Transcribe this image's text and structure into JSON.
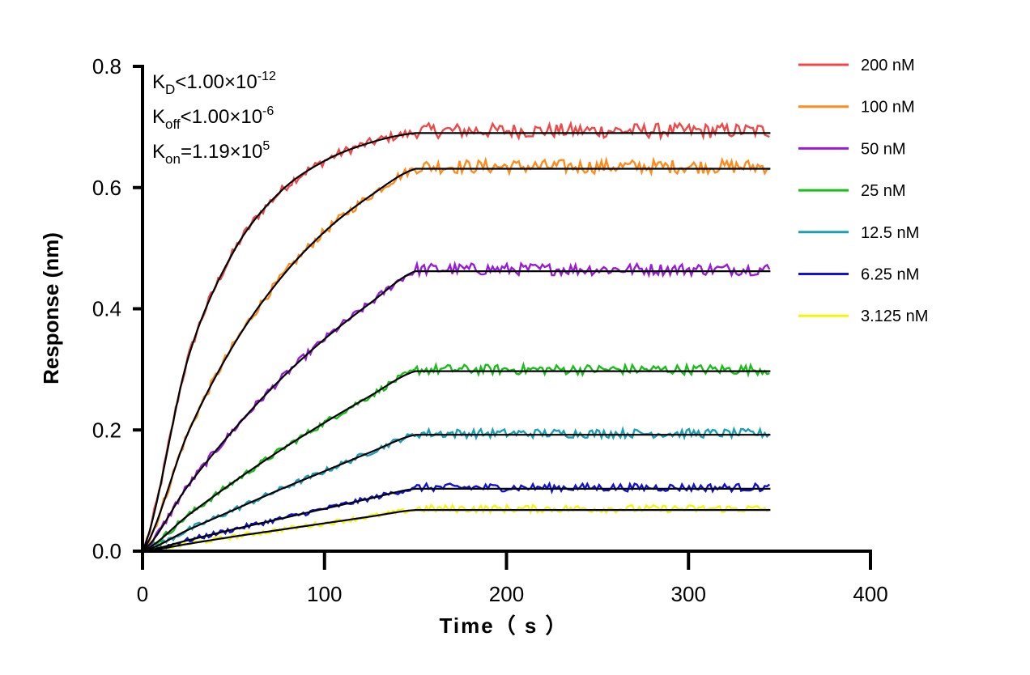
{
  "chart_data": {
    "type": "line",
    "xlabel": "Time（ s ）",
    "ylabel": "Response (nm)",
    "xlim": [
      0,
      400
    ],
    "ylim": [
      0,
      0.8
    ],
    "xticks": [
      "0",
      "100",
      "200",
      "300",
      "400"
    ],
    "yticks": [
      "0.0",
      "0.2",
      "0.4",
      "0.6",
      "0.8"
    ],
    "grid": false,
    "legend_position": "right",
    "fit_color": "#000000",
    "annotations": [
      {
        "main": "K",
        "sub": "D",
        "rel": "<1.00×10",
        "exp": "-12"
      },
      {
        "main": "K",
        "sub": "off",
        "rel": "<1.00×10",
        "exp": "-6"
      },
      {
        "main": "K",
        "sub": "on",
        "rel": "=1.19×10",
        "exp": "5"
      }
    ],
    "x": [
      0,
      25,
      50,
      75,
      100,
      125,
      150,
      200,
      250,
      300,
      345
    ],
    "series": [
      {
        "name": "200 nM",
        "color": "#f04848",
        "values": [
          0,
          0.318,
          0.494,
          0.591,
          0.644,
          0.674,
          0.69,
          0.69,
          0.69,
          0.69,
          0.69
        ]
      },
      {
        "name": "100 nM",
        "color": "#ff8c1a",
        "values": [
          0,
          0.195,
          0.34,
          0.447,
          0.527,
          0.586,
          0.631,
          0.631,
          0.631,
          0.631,
          0.631
        ]
      },
      {
        "name": "50 nM",
        "color": "#9b19d9",
        "values": [
          0,
          0.108,
          0.2,
          0.281,
          0.35,
          0.409,
          0.462,
          0.462,
          0.462,
          0.462,
          0.462
        ]
      },
      {
        "name": "25 nM",
        "color": "#19bf19",
        "values": [
          0,
          0.059,
          0.114,
          0.165,
          0.212,
          0.256,
          0.297,
          0.297,
          0.297,
          0.297,
          0.297
        ]
      },
      {
        "name": "12.5 nM",
        "color": "#1a9fb5",
        "values": [
          0,
          0.035,
          0.068,
          0.101,
          0.132,
          0.163,
          0.192,
          0.192,
          0.192,
          0.192,
          0.192
        ]
      },
      {
        "name": "6.25 nM",
        "color": "#0f0fe0",
        "values": [
          0,
          0.018,
          0.036,
          0.053,
          0.07,
          0.087,
          0.103,
          0.103,
          0.103,
          0.103,
          0.103
        ]
      },
      {
        "name": "3.125 nM",
        "color": "#f5f50a",
        "values": [
          0,
          0.012,
          0.024,
          0.035,
          0.046,
          0.057,
          0.068,
          0.068,
          0.068,
          0.068,
          0.068
        ]
      }
    ]
  }
}
